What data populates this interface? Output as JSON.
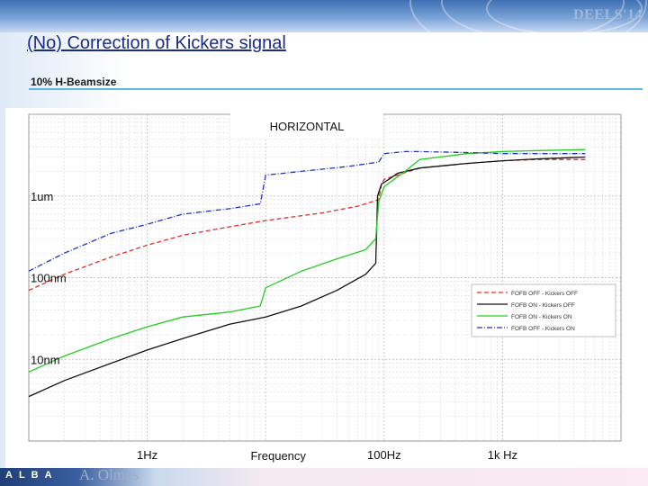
{
  "header": {
    "conference": "DEELS'14",
    "title": "(No) Correction of Kickers signal",
    "subtitle": "10% H-Beamsize"
  },
  "footer": {
    "logo_text": "ALBA",
    "author": "A. Olmos"
  },
  "colors": {
    "title": "#1a2c8a",
    "rule": "#5fb8e0",
    "fofb_off_kickers_off": "#d93030",
    "fofb_on_kickers_off": "#111111",
    "fofb_on_kickers_on": "#22cc22",
    "fofb_off_kickers_on": "#2233bb"
  },
  "chart_data": {
    "type": "line",
    "title": "HORIZONTAL",
    "xlabel": "Frequency",
    "x_scale": "log",
    "y_scale": "log",
    "xlim": [
      0.1,
      10000
    ],
    "ylim": [
      0.001,
      10
    ],
    "grid": true,
    "legend_position": "bottom-right",
    "x_tick_labels": [
      {
        "value": 1,
        "label": "1Hz"
      },
      {
        "value": 100,
        "label": "100Hz"
      },
      {
        "value": 1000,
        "label": "1k Hz"
      }
    ],
    "y_tick_labels": [
      {
        "value": 1,
        "label": "1um"
      },
      {
        "value": 0.1,
        "label": "100nm"
      },
      {
        "value": 0.01,
        "label": "10nm"
      }
    ],
    "series": [
      {
        "name": "FOFB OFF - Kickers OFF",
        "color": "#d93030",
        "dash": "dashed",
        "x": [
          0.1,
          0.2,
          0.5,
          1,
          2,
          5,
          10,
          30,
          60,
          90,
          95,
          100,
          200,
          500,
          1000,
          2000,
          5000
        ],
        "y": [
          0.07,
          0.11,
          0.18,
          0.25,
          0.33,
          0.42,
          0.5,
          0.62,
          0.75,
          0.9,
          1.4,
          1.6,
          2.2,
          2.5,
          2.7,
          2.8,
          2.8
        ]
      },
      {
        "name": "FOFB ON - Kickers OFF",
        "color": "#111111",
        "dash": "solid",
        "x": [
          0.1,
          0.2,
          0.5,
          1,
          2,
          5,
          10,
          20,
          40,
          70,
          85,
          88,
          95,
          110,
          130,
          200,
          500,
          1000,
          2000,
          5000
        ],
        "y": [
          0.0035,
          0.0055,
          0.009,
          0.013,
          0.018,
          0.027,
          0.033,
          0.045,
          0.07,
          0.11,
          0.15,
          1.0,
          1.4,
          1.6,
          1.9,
          2.2,
          2.5,
          2.7,
          2.85,
          3.0
        ]
      },
      {
        "name": "FOFB ON - Kickers ON",
        "color": "#22cc22",
        "dash": "solid",
        "x": [
          0.1,
          0.2,
          0.5,
          1,
          2,
          5,
          9,
          10,
          20,
          40,
          70,
          85,
          90,
          100,
          150,
          200,
          500,
          1000,
          2000,
          5000
        ],
        "y": [
          0.007,
          0.011,
          0.018,
          0.025,
          0.033,
          0.038,
          0.045,
          0.075,
          0.12,
          0.17,
          0.22,
          0.3,
          0.85,
          1.3,
          2.0,
          2.8,
          3.3,
          3.5,
          3.6,
          3.7
        ]
      },
      {
        "name": "FOFB OFF - Kickers ON",
        "color": "#2233bb",
        "dash": "dashdot",
        "x": [
          0.1,
          0.2,
          0.5,
          1,
          2,
          5,
          9,
          10,
          20,
          50,
          90,
          100,
          150,
          200,
          500,
          1000,
          2000,
          5000
        ],
        "y": [
          0.12,
          0.2,
          0.35,
          0.45,
          0.6,
          0.7,
          0.8,
          1.8,
          2.0,
          2.3,
          2.6,
          3.3,
          3.5,
          3.5,
          3.4,
          3.3,
          3.3,
          3.3
        ]
      }
    ]
  }
}
